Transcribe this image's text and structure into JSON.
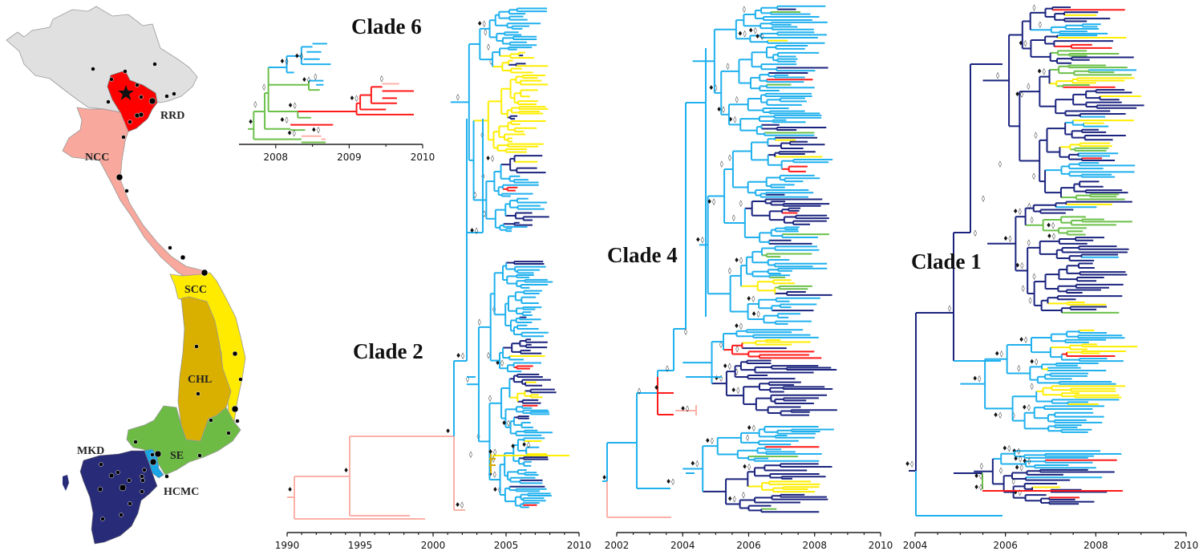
{
  "figure": {
    "map": {
      "regions": [
        {
          "code": "north",
          "label": "",
          "color": "#e0e0e0"
        },
        {
          "code": "RRD",
          "label": "RRD",
          "color": "#ff0000"
        },
        {
          "code": "NCC",
          "label": "NCC",
          "color": "#f8a89c"
        },
        {
          "code": "SCC",
          "label": "SCC",
          "color": "#ffeb00"
        },
        {
          "code": "CHL",
          "label": "CHL",
          "color": "#d9b000"
        },
        {
          "code": "SE",
          "label": "SE",
          "color": "#6dbb45"
        },
        {
          "code": "HCMC",
          "label": "HCMC",
          "color": "#1aa6e6"
        },
        {
          "code": "MKD",
          "label": "MKD",
          "color": "#282b77"
        }
      ],
      "capital_marker": "star-icon"
    },
    "legend_colors": {
      "light_blue": "#1fb0ee",
      "dark_blue": "#1a237e",
      "red": "#ff1a1a",
      "pink": "#fbb0a8",
      "yellow": "#ffee00",
      "olive": "#d4aa00",
      "green": "#6cc04a",
      "black": "#111111"
    },
    "support_symbols": {
      "filled": "♦",
      "open": "◊"
    }
  },
  "chart_data": [
    {
      "type": "tree",
      "title": "Clade 6",
      "xlabel": "",
      "xlim": [
        2007.6,
        2010
      ],
      "ticks": [
        "2008",
        "2009",
        "2010"
      ],
      "tick_values": [
        2008,
        2009,
        2010
      ],
      "minor_ticks": [
        2008.5,
        2009.5
      ],
      "branches": [
        {
          "c": "green",
          "x0": 2007.62,
          "x1": 2007.7,
          "y": 0.85
        },
        {
          "c": "green",
          "x0": 2007.7,
          "x1": 2007.7,
          "y0": 0.68,
          "y1": 0.95
        },
        {
          "c": "green",
          "x0": 2007.7,
          "x1": 2007.85,
          "y": 0.68
        },
        {
          "c": "green",
          "x0": 2007.7,
          "x1": 2008.35,
          "y": 0.95
        },
        {
          "c": "green",
          "x0": 2007.85,
          "x1": 2007.85,
          "y0": 0.5,
          "y1": 0.85
        },
        {
          "c": "green",
          "x0": 2007.85,
          "x1": 2007.9,
          "y": 0.5
        },
        {
          "c": "green",
          "x0": 2007.85,
          "x1": 2008.2,
          "y": 0.85
        },
        {
          "c": "green",
          "x0": 2007.9,
          "x1": 2007.9,
          "y0": 0.25,
          "y1": 0.68
        },
        {
          "c": "blue",
          "x0": 2007.9,
          "x1": 2008.15,
          "y": 0.25
        },
        {
          "c": "green",
          "x0": 2007.9,
          "x1": 2008.45,
          "y": 0.42
        },
        {
          "c": "green",
          "x0": 2007.9,
          "x1": 2008.3,
          "y": 0.68
        },
        {
          "c": "blue",
          "x0": 2008.15,
          "x1": 2008.15,
          "y0": 0.14,
          "y1": 0.3
        },
        {
          "c": "blue",
          "x0": 2008.15,
          "x1": 2008.35,
          "y": 0.14
        },
        {
          "c": "blue",
          "x0": 2008.15,
          "x1": 2008.25,
          "y": 0.3
        },
        {
          "c": "blue",
          "x0": 2008.35,
          "x1": 2008.35,
          "y0": 0.05,
          "y1": 0.22
        },
        {
          "c": "blue",
          "x0": 2008.35,
          "x1": 2008.75,
          "y": 0.22
        },
        {
          "c": "blue",
          "x0": 2008.35,
          "x1": 2008.5,
          "y": 0.05
        },
        {
          "c": "blue",
          "x0": 2008.5,
          "x1": 2008.7,
          "y": 0.02
        },
        {
          "c": "blue",
          "x0": 2008.42,
          "x1": 2008.62,
          "y": 0.1
        },
        {
          "c": "blue",
          "x0": 2008.38,
          "x1": 2008.6,
          "y": 0.17
        },
        {
          "c": "green",
          "x0": 2008.45,
          "x1": 2008.45,
          "y0": 0.38,
          "y1": 0.47
        },
        {
          "c": "blue",
          "x0": 2008.45,
          "x1": 2008.65,
          "y": 0.38
        },
        {
          "c": "blue",
          "x0": 2008.55,
          "x1": 2008.65,
          "y": 0.42
        },
        {
          "c": "green",
          "x0": 2008.45,
          "x1": 2008.6,
          "y": 0.47
        },
        {
          "c": "green",
          "x0": 2008.3,
          "x1": 2008.3,
          "y0": 0.68,
          "y1": 0.74
        },
        {
          "c": "red",
          "x0": 2008.3,
          "x1": 2009.1,
          "y": 0.68
        },
        {
          "c": "green",
          "x0": 2008.3,
          "x1": 2008.48,
          "y": 0.74
        },
        {
          "c": "red",
          "x0": 2008.2,
          "x1": 2008.78,
          "y": 0.81
        },
        {
          "c": "green",
          "x0": 2008.2,
          "x1": 2008.4,
          "y": 0.86
        },
        {
          "c": "red",
          "x0": 2009.1,
          "x1": 2009.1,
          "y0": 0.6,
          "y1": 0.71
        },
        {
          "c": "red",
          "x0": 2009.1,
          "x1": 2009.15,
          "y": 0.6
        },
        {
          "c": "red",
          "x0": 2009.1,
          "x1": 2009.88,
          "y": 0.71
        },
        {
          "c": "red",
          "x0": 2009.15,
          "x1": 2009.15,
          "y0": 0.52,
          "y1": 0.66
        },
        {
          "c": "red",
          "x0": 2009.15,
          "x1": 2009.3,
          "y": 0.52
        },
        {
          "c": "red",
          "x0": 2009.15,
          "x1": 2009.5,
          "y": 0.66
        },
        {
          "c": "red",
          "x0": 2009.3,
          "x1": 2009.3,
          "y0": 0.44,
          "y1": 0.6
        },
        {
          "c": "red",
          "x0": 2009.3,
          "x1": 2009.45,
          "y": 0.44
        },
        {
          "c": "red",
          "x0": 2009.3,
          "x1": 2009.65,
          "y": 0.6
        },
        {
          "c": "pink",
          "x0": 2009.45,
          "x1": 2009.68,
          "y": 0.41
        },
        {
          "c": "red",
          "x0": 2009.45,
          "x1": 2009.88,
          "y": 0.48
        },
        {
          "c": "red",
          "x0": 2009.45,
          "x1": 2009.65,
          "y": 0.55
        },
        {
          "c": "pink",
          "x0": 2008.35,
          "x1": 2008.62,
          "y": 0.92
        },
        {
          "c": "pink",
          "x0": 2008.62,
          "x1": 2008.68,
          "y": 0.95
        },
        {
          "c": "green",
          "x0": 2008.35,
          "x1": 2008.68,
          "y": 0.98
        }
      ],
      "support": [
        {
          "x": 2007.62,
          "y": 0.8,
          "s": "♦"
        },
        {
          "x": 2007.7,
          "y": 0.63,
          "s": "◊"
        },
        {
          "x": 2007.82,
          "y": 0.46,
          "s": "◊"
        },
        {
          "x": 2008.05,
          "y": 0.21,
          "s": "♦◊"
        },
        {
          "x": 2008.25,
          "y": 0.16,
          "s": "♦◊"
        },
        {
          "x": 2008.35,
          "y": 0.39,
          "s": "♦◊"
        },
        {
          "x": 2008.52,
          "y": 0.36,
          "s": "◊"
        },
        {
          "x": 2008.16,
          "y": 0.64,
          "s": "♦◊"
        },
        {
          "x": 2008.05,
          "y": 0.78,
          "s": "♦◊"
        },
        {
          "x": 2008.15,
          "y": 0.91,
          "s": "♦◊"
        },
        {
          "x": 2008.48,
          "y": 0.88,
          "s": "♦◊"
        },
        {
          "x": 2009.0,
          "y": 0.57,
          "s": "♦◊"
        },
        {
          "x": 2009.42,
          "y": 0.38,
          "s": "◊"
        }
      ]
    },
    {
      "type": "tree",
      "title": "Clade 2",
      "xlim": [
        1990,
        2010
      ],
      "ticks": [
        "1990",
        "1995",
        "2000",
        "2005",
        "2010"
      ],
      "tick_values": [
        1990,
        1995,
        2000,
        2005,
        2010
      ],
      "minor_step": 1
    },
    {
      "type": "tree",
      "title": "Clade 4",
      "xlim": [
        2001.6,
        2010
      ],
      "ticks": [
        "2002",
        "2004",
        "2006",
        "2008",
        "2010"
      ],
      "tick_values": [
        2002,
        2004,
        2006,
        2008,
        2010
      ],
      "minor_step": 0.5
    },
    {
      "type": "tree",
      "title": "Clade 1",
      "xlim": [
        2003.8,
        2010
      ],
      "ticks": [
        "2004",
        "2006",
        "2008",
        "2010"
      ],
      "tick_values": [
        2004,
        2006,
        2008,
        2010
      ],
      "minor_step": 0.5
    }
  ]
}
